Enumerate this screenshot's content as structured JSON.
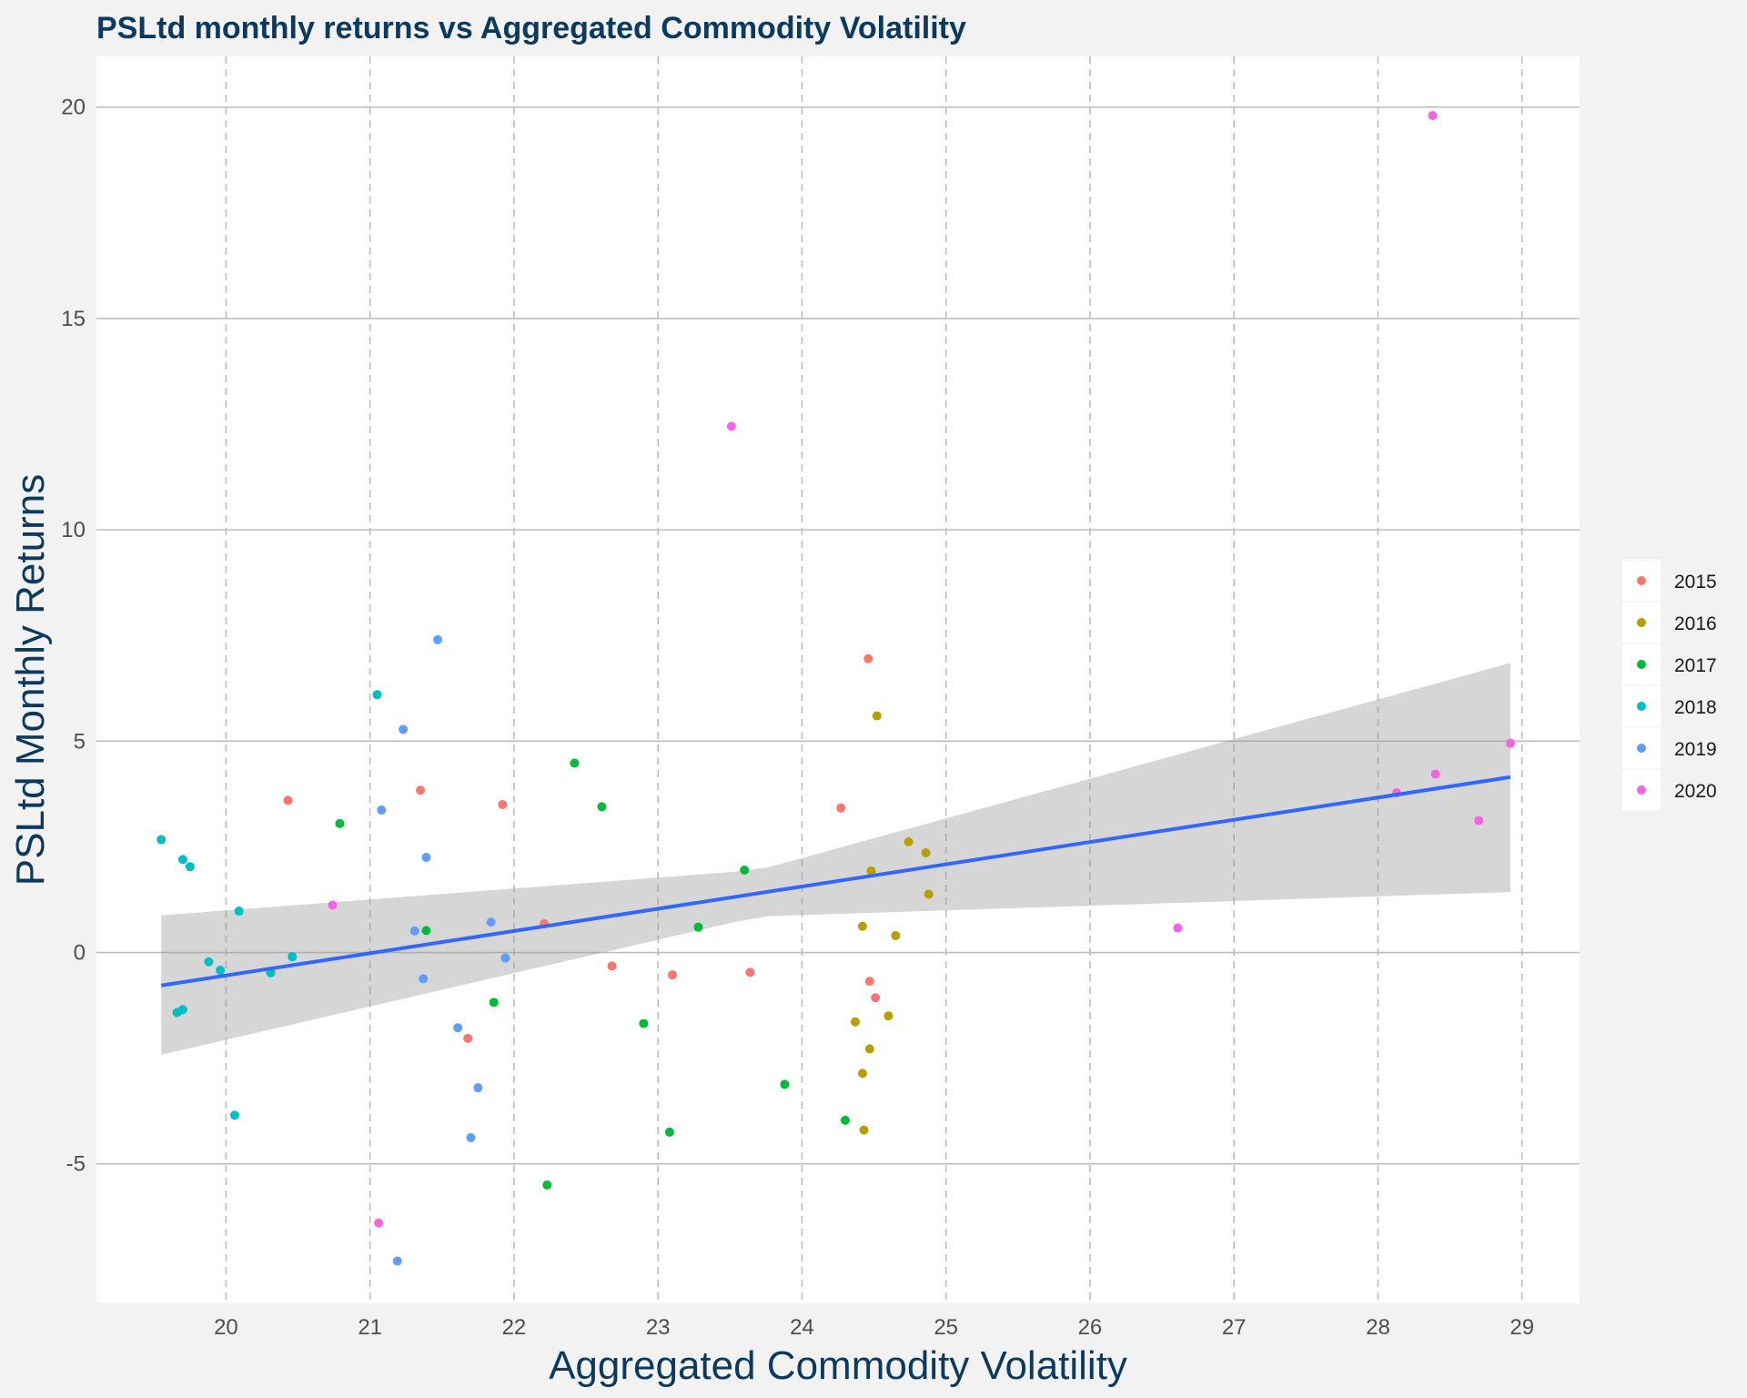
{
  "chart_data": {
    "type": "scatter",
    "title": "PSLtd monthly returns vs Aggregated Commodity Volatility",
    "xlabel": "Aggregated Commodity Volatility",
    "ylabel": "PSLtd Monthly Returns",
    "xlim": [
      19.1,
      29.4
    ],
    "ylim": [
      -8.3,
      21.2
    ],
    "x_ticks": [
      20,
      21,
      22,
      23,
      24,
      25,
      26,
      27,
      28,
      29
    ],
    "y_ticks": [
      -5,
      0,
      5,
      10,
      15,
      20
    ],
    "grid": true,
    "legend_position": "right",
    "series": [
      {
        "name": "2015",
        "color": "#F8766D",
        "points": [
          [
            20.43,
            3.6
          ],
          [
            21.35,
            3.84
          ],
          [
            21.92,
            3.5
          ],
          [
            22.21,
            0.68
          ],
          [
            22.68,
            -0.32
          ],
          [
            21.68,
            -2.03
          ],
          [
            23.1,
            -0.53
          ],
          [
            23.64,
            -0.47
          ],
          [
            24.27,
            3.42
          ],
          [
            24.46,
            6.95
          ],
          [
            24.47,
            -0.68
          ],
          [
            24.51,
            -1.07
          ]
        ]
      },
      {
        "name": "2016",
        "color": "#B79F00",
        "points": [
          [
            24.52,
            5.6
          ],
          [
            24.74,
            2.62
          ],
          [
            24.86,
            2.36
          ],
          [
            24.48,
            1.93
          ],
          [
            24.42,
            0.62
          ],
          [
            24.65,
            0.4
          ],
          [
            24.88,
            1.38
          ],
          [
            24.37,
            -1.64
          ],
          [
            24.6,
            -1.5
          ],
          [
            24.47,
            -2.28
          ],
          [
            24.42,
            -2.86
          ],
          [
            24.43,
            -4.2
          ]
        ]
      },
      {
        "name": "2017",
        "color": "#00BA38",
        "points": [
          [
            20.79,
            3.05
          ],
          [
            21.39,
            0.52
          ],
          [
            21.86,
            -1.18
          ],
          [
            22.42,
            4.48
          ],
          [
            22.61,
            3.45
          ],
          [
            23.6,
            1.95
          ],
          [
            23.28,
            0.6
          ],
          [
            22.9,
            -1.68
          ],
          [
            23.88,
            -3.12
          ],
          [
            23.08,
            -4.25
          ],
          [
            24.3,
            -3.97
          ],
          [
            22.23,
            -5.5
          ]
        ]
      },
      {
        "name": "2018",
        "color": "#00BFC4",
        "points": [
          [
            19.55,
            2.67
          ],
          [
            19.7,
            2.2
          ],
          [
            19.75,
            2.03
          ],
          [
            21.05,
            6.1
          ],
          [
            20.09,
            0.98
          ],
          [
            19.88,
            -0.22
          ],
          [
            19.96,
            -0.42
          ],
          [
            20.31,
            -0.48
          ],
          [
            20.46,
            -0.1
          ],
          [
            19.7,
            -1.35
          ],
          [
            19.66,
            -1.42
          ],
          [
            20.06,
            -3.85
          ]
        ]
      },
      {
        "name": "2019",
        "color": "#619CFF",
        "points": [
          [
            21.47,
            7.4
          ],
          [
            21.23,
            5.28
          ],
          [
            21.08,
            3.37
          ],
          [
            21.39,
            2.25
          ],
          [
            21.31,
            0.51
          ],
          [
            21.84,
            0.72
          ],
          [
            21.94,
            -0.13
          ],
          [
            21.37,
            -0.62
          ],
          [
            21.61,
            -1.78
          ],
          [
            21.75,
            -3.2
          ],
          [
            21.7,
            -4.38
          ],
          [
            21.19,
            -7.3
          ]
        ]
      },
      {
        "name": "2020",
        "color": "#F564E3",
        "points": [
          [
            28.38,
            19.8
          ],
          [
            23.51,
            12.45
          ],
          [
            28.92,
            4.95
          ],
          [
            28.4,
            4.22
          ],
          [
            28.13,
            3.78
          ],
          [
            28.7,
            3.12
          ],
          [
            26.61,
            0.58
          ],
          [
            20.74,
            1.12
          ],
          [
            21.06,
            -6.4
          ]
        ]
      }
    ],
    "trend": {
      "type": "linear",
      "color": "#3366FF",
      "x": [
        19.55,
        28.92
      ],
      "y": [
        -0.78,
        4.15
      ],
      "ci_lower_ends": [
        -2.42,
        1.43
      ],
      "ci_upper_ends": [
        0.88,
        6.85
      ],
      "ci_x_min": 23.7
    }
  }
}
